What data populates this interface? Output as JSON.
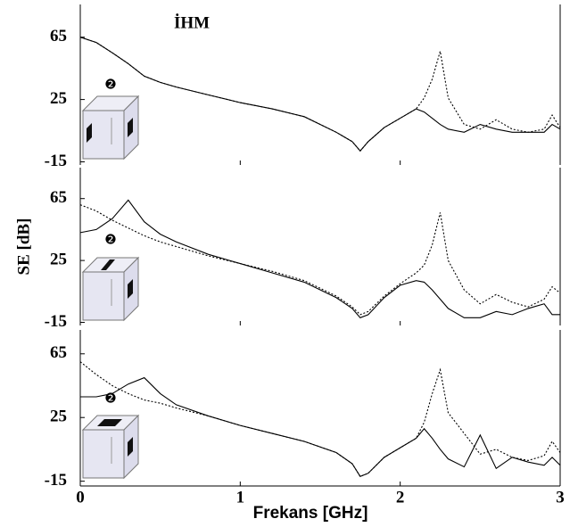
{
  "chart_data": [
    {
      "type": "line",
      "title": "İHM",
      "annotation": "❷",
      "x": [
        0,
        0.1,
        0.2,
        0.3,
        0.4,
        0.5,
        0.6,
        0.8,
        1.0,
        1.2,
        1.4,
        1.6,
        1.7,
        1.75,
        1.8,
        1.9,
        2.0,
        2.1,
        2.15,
        2.2,
        2.25,
        2.3,
        2.4,
        2.5,
        2.6,
        2.7,
        2.8,
        2.9,
        2.95,
        3.0
      ],
      "xlim": [
        0,
        3
      ],
      "xticks": [
        0,
        1,
        2,
        3
      ],
      "show_xtick_labels": false,
      "ylim": [
        -17,
        86
      ],
      "yticks": [
        65,
        25,
        -15
      ],
      "series": [
        {
          "color": "#000000",
          "dashed": false,
          "values": [
            65,
            61.6,
            55,
            48,
            40,
            36,
            33,
            28,
            23,
            19,
            14,
            4,
            -2,
            -8,
            -2,
            7,
            13,
            19,
            17,
            13,
            9,
            6,
            4,
            9,
            6,
            4,
            4,
            4,
            9,
            6
          ]
        },
        {
          "color": "#000000",
          "dashed": true,
          "values": [
            65,
            61.6,
            55,
            48,
            40,
            36,
            33,
            28,
            23,
            19,
            14,
            4,
            -2,
            -8,
            -2,
            7,
            13,
            19,
            26,
            38,
            56,
            26,
            9,
            6,
            12,
            6,
            4,
            6,
            15,
            7
          ]
        }
      ]
    },
    {
      "type": "line",
      "annotation": "❷",
      "ylabel": "SE [dB]",
      "x": [
        0,
        0.1,
        0.2,
        0.3,
        0.4,
        0.5,
        0.6,
        0.8,
        1.0,
        1.2,
        1.4,
        1.6,
        1.7,
        1.75,
        1.8,
        1.9,
        2.0,
        2.1,
        2.15,
        2.2,
        2.25,
        2.3,
        2.4,
        2.5,
        2.6,
        2.7,
        2.8,
        2.9,
        2.95,
        3.0
      ],
      "xlim": [
        0,
        3
      ],
      "xticks": [
        0,
        1,
        2,
        3
      ],
      "show_xtick_labels": false,
      "ylim": [
        -17,
        85
      ],
      "yticks": [
        65,
        25,
        -15
      ],
      "series": [
        {
          "color": "#000000",
          "dashed": false,
          "values": [
            43,
            45,
            52,
            64,
            50,
            42,
            37,
            29,
            23,
            17,
            11,
            1,
            -6,
            -12,
            -10,
            1,
            9,
            12,
            11,
            6,
            0,
            -6,
            -12,
            -12,
            -8,
            -10,
            -6,
            -3,
            -10,
            -10
          ]
        },
        {
          "color": "#000000",
          "dashed": true,
          "values": [
            61,
            57,
            51,
            46,
            41,
            37,
            34,
            28,
            23,
            18,
            12,
            2,
            -5,
            -10,
            -8,
            2,
            10,
            17,
            22,
            35,
            56,
            25,
            6,
            -3,
            3,
            -2,
            -5,
            0,
            8,
            4
          ]
        }
      ]
    },
    {
      "type": "line",
      "annotation": "❷",
      "xlabel": "Frekans [GHz]",
      "x": [
        0,
        0.1,
        0.2,
        0.3,
        0.4,
        0.5,
        0.6,
        0.8,
        1.0,
        1.2,
        1.4,
        1.6,
        1.7,
        1.75,
        1.8,
        1.9,
        2.0,
        2.1,
        2.15,
        2.2,
        2.25,
        2.3,
        2.4,
        2.5,
        2.6,
        2.7,
        2.8,
        2.9,
        2.95,
        3.0
      ],
      "xlim": [
        0,
        3
      ],
      "xticks": [
        0,
        1,
        2,
        3
      ],
      "show_xtick_labels": true,
      "ylim": [
        -18,
        80
      ],
      "yticks": [
        65,
        25,
        -15
      ],
      "series": [
        {
          "color": "#000000",
          "dashed": false,
          "values": [
            38,
            38,
            40,
            46,
            50,
            40,
            33,
            26,
            20,
            15,
            10,
            3,
            -4,
            -12,
            -10,
            0,
            6,
            12,
            18,
            12,
            5,
            -1,
            -6,
            14,
            -7,
            0,
            -3,
            -5,
            0,
            -5
          ]
        },
        {
          "color": "#000000",
          "dashed": true,
          "values": [
            60,
            52,
            45,
            40,
            36,
            34,
            31,
            26,
            20,
            15,
            10,
            3,
            -4,
            -12,
            -10,
            0,
            6,
            12,
            22,
            40,
            55,
            28,
            15,
            2,
            5,
            0,
            -2,
            1,
            10,
            3
          ]
        }
      ]
    }
  ]
}
